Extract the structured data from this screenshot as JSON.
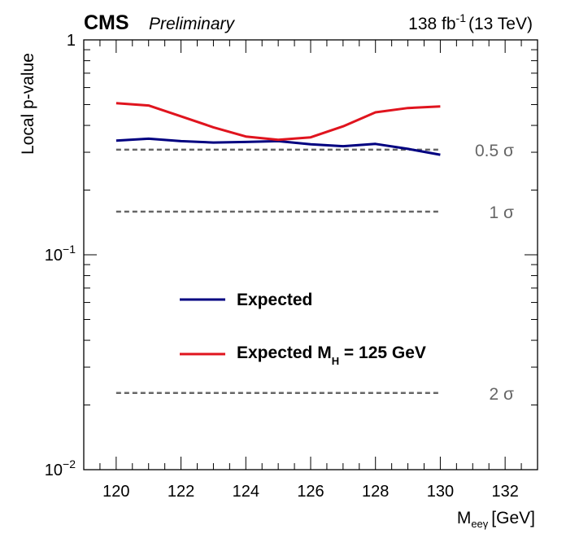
{
  "header": {
    "experiment": "CMS",
    "status": "Preliminary",
    "lumi_value": "138 fb",
    "lumi_exp": "-1",
    "lumi_energy": "(13 TeV)"
  },
  "chart_data": {
    "type": "line",
    "xlabel_main": "M",
    "xlabel_sub": "eeγ",
    "xlabel_unit": "[GeV]",
    "ylabel": "Local p-value",
    "xlim": [
      119,
      133
    ],
    "ylim": [
      0.01,
      1
    ],
    "yscale": "log",
    "x_ticks": [
      "120",
      "122",
      "124",
      "126",
      "128",
      "130",
      "132"
    ],
    "y_ticks": [
      {
        "value": 1,
        "base": "1",
        "exp": ""
      },
      {
        "value": 0.1,
        "base": "10",
        "exp": "−1"
      },
      {
        "value": 0.01,
        "base": "10",
        "exp": "−2"
      }
    ],
    "series": [
      {
        "name": "Expected",
        "color": "#000080",
        "x": [
          120,
          121,
          122,
          123,
          124,
          125,
          126,
          127,
          128,
          129,
          130
        ],
        "y": [
          0.34,
          0.347,
          0.338,
          0.333,
          0.335,
          0.338,
          0.327,
          0.32,
          0.328,
          0.311,
          0.292
        ]
      },
      {
        "name": "Expected M",
        "name_sub": "H",
        "name_rest": " = 125 GeV",
        "color": "#e0141e",
        "x": [
          120,
          121,
          122,
          123,
          124,
          125,
          126,
          127,
          128,
          129,
          130
        ],
        "y": [
          0.508,
          0.495,
          0.441,
          0.392,
          0.355,
          0.343,
          0.352,
          0.396,
          0.46,
          0.482,
          0.49
        ]
      }
    ],
    "reference_lines": [
      {
        "label": "0.5 σ",
        "value": 0.3085,
        "color": "#666666"
      },
      {
        "label": "1 σ",
        "value": 0.1587,
        "color": "#666666"
      },
      {
        "label": "2 σ",
        "value": 0.02275,
        "color": "#666666"
      }
    ],
    "reference_x_range": [
      120,
      130
    ],
    "legend_placement": "middle-left"
  }
}
